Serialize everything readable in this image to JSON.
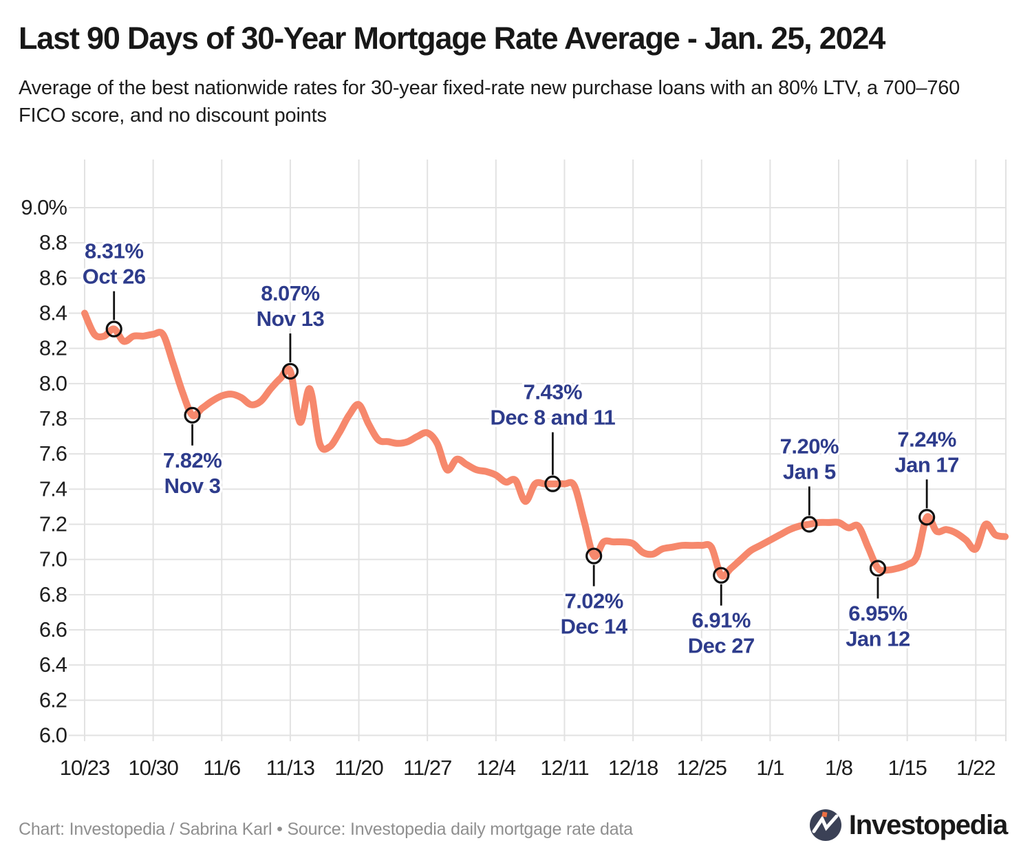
{
  "header": {
    "title": "Last 90 Days of 30-Year Mortgage Rate Average - Jan. 25, 2024",
    "subtitle": "Average of the best nationwide rates for 30-year fixed-rate new purchase loans with an 80% LTV, a 700–760 FICO score, and no discount points"
  },
  "footer": {
    "credit": "Chart: Investopedia / Sabrina Karl • Source: Investopedia daily mortgage rate data",
    "logo_text": "Investopedia"
  },
  "colors": {
    "line": "#F6886C",
    "grid": "#E2E2E2",
    "axis_text": "#1E1E1E",
    "annotation_text": "#2E3C8C",
    "marker_stroke": "#101010",
    "leader": "#101010",
    "halo": "#FFFFFF"
  },
  "chart_data": {
    "type": "line",
    "title": "Last 90 Days of 30-Year Mortgage Rate Average - Jan. 25, 2024",
    "xlabel": "",
    "ylabel": "",
    "ylim": [
      6.0,
      9.0
    ],
    "grid": true,
    "legend": "none",
    "y_ticks": [
      "9.0%",
      "8.8",
      "8.6",
      "8.4",
      "8.2",
      "8.0",
      "7.8",
      "7.6",
      "7.4",
      "7.2",
      "7.0",
      "6.8",
      "6.6",
      "6.4",
      "6.2",
      "6.0"
    ],
    "x_ticks": [
      "10/23",
      "10/30",
      "11/6",
      "11/13",
      "11/20",
      "11/27",
      "12/4",
      "12/11",
      "12/18",
      "12/25",
      "1/1",
      "1/8",
      "1/15",
      "1/22"
    ],
    "series": [
      {
        "name": "30-year mortgage rate average",
        "points": [
          {
            "date": "10/23",
            "value": 8.4
          },
          {
            "date": "10/24",
            "value": 8.28
          },
          {
            "date": "10/25",
            "value": 8.27
          },
          {
            "date": "10/26",
            "value": 8.31
          },
          {
            "date": "10/27",
            "value": 8.24
          },
          {
            "date": "10/28",
            "value": 8.27
          },
          {
            "date": "10/29",
            "value": 8.27
          },
          {
            "date": "10/30",
            "value": 8.28
          },
          {
            "date": "10/31",
            "value": 8.28
          },
          {
            "date": "11/1",
            "value": 8.12
          },
          {
            "date": "11/2",
            "value": 7.95
          },
          {
            "date": "11/3",
            "value": 7.82
          },
          {
            "date": "11/4",
            "value": 7.86
          },
          {
            "date": "11/5",
            "value": 7.9
          },
          {
            "date": "11/6",
            "value": 7.93
          },
          {
            "date": "11/7",
            "value": 7.94
          },
          {
            "date": "11/8",
            "value": 7.92
          },
          {
            "date": "11/9",
            "value": 7.88
          },
          {
            "date": "11/10",
            "value": 7.9
          },
          {
            "date": "11/11",
            "value": 7.97
          },
          {
            "date": "11/12",
            "value": 8.03
          },
          {
            "date": "11/13",
            "value": 8.07
          },
          {
            "date": "11/14",
            "value": 7.78
          },
          {
            "date": "11/15",
            "value": 7.97
          },
          {
            "date": "11/16",
            "value": 7.66
          },
          {
            "date": "11/17",
            "value": 7.64
          },
          {
            "date": "11/18",
            "value": 7.72
          },
          {
            "date": "11/19",
            "value": 7.82
          },
          {
            "date": "11/20",
            "value": 7.88
          },
          {
            "date": "11/21",
            "value": 7.77
          },
          {
            "date": "11/22",
            "value": 7.68
          },
          {
            "date": "11/23",
            "value": 7.67
          },
          {
            "date": "11/24",
            "value": 7.66
          },
          {
            "date": "11/25",
            "value": 7.67
          },
          {
            "date": "11/26",
            "value": 7.7
          },
          {
            "date": "11/27",
            "value": 7.72
          },
          {
            "date": "11/28",
            "value": 7.66
          },
          {
            "date": "11/29",
            "value": 7.51
          },
          {
            "date": "11/30",
            "value": 7.57
          },
          {
            "date": "12/1",
            "value": 7.54
          },
          {
            "date": "12/2",
            "value": 7.51
          },
          {
            "date": "12/3",
            "value": 7.5
          },
          {
            "date": "12/4",
            "value": 7.48
          },
          {
            "date": "12/5",
            "value": 7.44
          },
          {
            "date": "12/6",
            "value": 7.45
          },
          {
            "date": "12/7",
            "value": 7.33
          },
          {
            "date": "12/8",
            "value": 7.43
          },
          {
            "date": "12/9",
            "value": 7.43
          },
          {
            "date": "12/10",
            "value": 7.43
          },
          {
            "date": "12/11",
            "value": 7.43
          },
          {
            "date": "12/12",
            "value": 7.42
          },
          {
            "date": "12/13",
            "value": 7.22
          },
          {
            "date": "12/14",
            "value": 7.02
          },
          {
            "date": "12/15",
            "value": 7.1
          },
          {
            "date": "12/16",
            "value": 7.1
          },
          {
            "date": "12/17",
            "value": 7.1
          },
          {
            "date": "12/18",
            "value": 7.09
          },
          {
            "date": "12/19",
            "value": 7.04
          },
          {
            "date": "12/20",
            "value": 7.03
          },
          {
            "date": "12/21",
            "value": 7.06
          },
          {
            "date": "12/22",
            "value": 7.07
          },
          {
            "date": "12/23",
            "value": 7.08
          },
          {
            "date": "12/24",
            "value": 7.08
          },
          {
            "date": "12/25",
            "value": 7.08
          },
          {
            "date": "12/26",
            "value": 7.07
          },
          {
            "date": "12/27",
            "value": 6.91
          },
          {
            "date": "12/28",
            "value": 6.95
          },
          {
            "date": "12/29",
            "value": 7.0
          },
          {
            "date": "12/30",
            "value": 7.05
          },
          {
            "date": "12/31",
            "value": 7.08
          },
          {
            "date": "1/1",
            "value": 7.11
          },
          {
            "date": "1/2",
            "value": 7.14
          },
          {
            "date": "1/3",
            "value": 7.17
          },
          {
            "date": "1/4",
            "value": 7.19
          },
          {
            "date": "1/5",
            "value": 7.2
          },
          {
            "date": "1/6",
            "value": 7.21
          },
          {
            "date": "1/7",
            "value": 7.21
          },
          {
            "date": "1/8",
            "value": 7.21
          },
          {
            "date": "1/9",
            "value": 7.18
          },
          {
            "date": "1/10",
            "value": 7.19
          },
          {
            "date": "1/11",
            "value": 7.07
          },
          {
            "date": "1/12",
            "value": 6.95
          },
          {
            "date": "1/13",
            "value": 6.94
          },
          {
            "date": "1/14",
            "value": 6.95
          },
          {
            "date": "1/15",
            "value": 6.97
          },
          {
            "date": "1/16",
            "value": 7.02
          },
          {
            "date": "1/17",
            "value": 7.24
          },
          {
            "date": "1/18",
            "value": 7.16
          },
          {
            "date": "1/19",
            "value": 7.17
          },
          {
            "date": "1/20",
            "value": 7.15
          },
          {
            "date": "1/21",
            "value": 7.11
          },
          {
            "date": "1/22",
            "value": 7.06
          },
          {
            "date": "1/23",
            "value": 7.2
          },
          {
            "date": "1/24",
            "value": 7.14
          },
          {
            "date": "1/25",
            "value": 7.13
          }
        ]
      }
    ],
    "annotations": [
      {
        "rate": "8.31%",
        "date_label": "Oct 26",
        "day": 3,
        "value": 8.31,
        "side": "above",
        "lift": 0
      },
      {
        "rate": "7.82%",
        "date_label": "Nov 3",
        "day": 11,
        "value": 7.82,
        "side": "below",
        "lift": 0
      },
      {
        "rate": "8.07%",
        "date_label": "Nov 13",
        "day": 21,
        "value": 8.07,
        "side": "above",
        "lift": 0
      },
      {
        "rate": "7.43%",
        "date_label": "Dec 8 and 11",
        "day": 47.8,
        "value": 7.43,
        "side": "above",
        "lift": 20
      },
      {
        "rate": "7.02%",
        "date_label": "Dec 14",
        "day": 52,
        "value": 7.02,
        "side": "below",
        "lift": 0
      },
      {
        "rate": "6.91%",
        "date_label": "Dec 27",
        "day": 65,
        "value": 6.91,
        "side": "below",
        "lift": 0
      },
      {
        "rate": "7.20%",
        "date_label": "Jan 5",
        "day": 74,
        "value": 7.2,
        "side": "above",
        "lift": 0
      },
      {
        "rate": "6.95%",
        "date_label": "Jan 12",
        "day": 81,
        "value": 6.95,
        "side": "below",
        "lift": 0
      },
      {
        "rate": "7.24%",
        "date_label": "Jan 17",
        "day": 86,
        "value": 7.24,
        "side": "above",
        "lift": 0
      }
    ]
  }
}
